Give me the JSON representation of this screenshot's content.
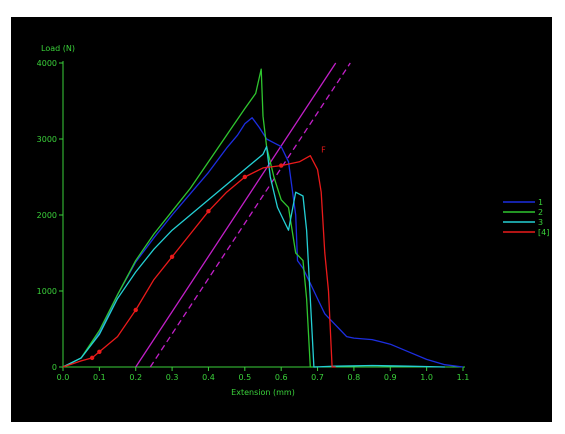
{
  "chart_data": {
    "type": "line",
    "xlabel": "Extension (mm)",
    "ylabel": "Load (N)",
    "xlim": [
      0,
      1.1
    ],
    "ylim": [
      0,
      4000
    ],
    "x_ticks": [
      "0.0",
      "0.1",
      "0.2",
      "0.3",
      "0.4",
      "0.5",
      "0.6",
      "0.7",
      "0.8",
      "0.9",
      "1.0",
      "1.1"
    ],
    "y_ticks": [
      "0",
      "1000",
      "2000",
      "3000",
      "4000"
    ],
    "legend_position": "right",
    "series": [
      {
        "name": "1",
        "color": "#1c2ee0",
        "points": [
          [
            0,
            0
          ],
          [
            0.05,
            120
          ],
          [
            0.1,
            450
          ],
          [
            0.15,
            950
          ],
          [
            0.2,
            1380
          ],
          [
            0.25,
            1700
          ],
          [
            0.3,
            2000
          ],
          [
            0.35,
            2280
          ],
          [
            0.4,
            2560
          ],
          [
            0.45,
            2880
          ],
          [
            0.48,
            3050
          ],
          [
            0.5,
            3200
          ],
          [
            0.52,
            3280
          ],
          [
            0.54,
            3150
          ],
          [
            0.56,
            3000
          ],
          [
            0.58,
            2950
          ],
          [
            0.6,
            2900
          ],
          [
            0.62,
            2700
          ],
          [
            0.64,
            2000
          ],
          [
            0.645,
            1400
          ],
          [
            0.66,
            1300
          ],
          [
            0.68,
            1100
          ],
          [
            0.7,
            900
          ],
          [
            0.72,
            700
          ],
          [
            0.74,
            600
          ],
          [
            0.76,
            500
          ],
          [
            0.78,
            400
          ],
          [
            0.8,
            380
          ],
          [
            0.85,
            360
          ],
          [
            0.9,
            300
          ],
          [
            0.95,
            200
          ],
          [
            1.0,
            100
          ],
          [
            1.05,
            30
          ],
          [
            1.1,
            0
          ]
        ]
      },
      {
        "name": "2",
        "color": "#2fc52f",
        "points": [
          [
            0,
            0
          ],
          [
            0.05,
            120
          ],
          [
            0.1,
            480
          ],
          [
            0.15,
            950
          ],
          [
            0.2,
            1400
          ],
          [
            0.25,
            1750
          ],
          [
            0.3,
            2050
          ],
          [
            0.35,
            2350
          ],
          [
            0.4,
            2700
          ],
          [
            0.45,
            3050
          ],
          [
            0.5,
            3400
          ],
          [
            0.53,
            3600
          ],
          [
            0.545,
            3920
          ],
          [
            0.55,
            3300
          ],
          [
            0.56,
            2900
          ],
          [
            0.58,
            2500
          ],
          [
            0.6,
            2200
          ],
          [
            0.62,
            2100
          ],
          [
            0.64,
            1500
          ],
          [
            0.66,
            1400
          ],
          [
            0.67,
            900
          ],
          [
            0.68,
            0
          ],
          [
            0.7,
            0
          ]
        ]
      },
      {
        "name": "3",
        "color": "#24cfd4",
        "points": [
          [
            0,
            0
          ],
          [
            0.05,
            120
          ],
          [
            0.1,
            430
          ],
          [
            0.15,
            900
          ],
          [
            0.2,
            1250
          ],
          [
            0.25,
            1550
          ],
          [
            0.3,
            1800
          ],
          [
            0.35,
            2000
          ],
          [
            0.4,
            2200
          ],
          [
            0.45,
            2400
          ],
          [
            0.5,
            2600
          ],
          [
            0.55,
            2800
          ],
          [
            0.56,
            2900
          ],
          [
            0.57,
            2500
          ],
          [
            0.59,
            2100
          ],
          [
            0.61,
            1900
          ],
          [
            0.62,
            1800
          ],
          [
            0.64,
            2300
          ],
          [
            0.66,
            2250
          ],
          [
            0.67,
            1800
          ],
          [
            0.68,
            900
          ],
          [
            0.69,
            0
          ],
          [
            0.75,
            10
          ],
          [
            0.85,
            20
          ],
          [
            0.95,
            10
          ],
          [
            1.05,
            0
          ]
        ]
      },
      {
        "name": "[4]",
        "color": "#ea1a1a",
        "points": [
          [
            0,
            0
          ],
          [
            0.05,
            80
          ],
          [
            0.08,
            120
          ],
          [
            0.1,
            200
          ],
          [
            0.15,
            400
          ],
          [
            0.2,
            750
          ],
          [
            0.25,
            1150
          ],
          [
            0.3,
            1450
          ],
          [
            0.35,
            1750
          ],
          [
            0.4,
            2050
          ],
          [
            0.45,
            2300
          ],
          [
            0.5,
            2500
          ],
          [
            0.55,
            2620
          ],
          [
            0.6,
            2650
          ],
          [
            0.65,
            2700
          ],
          [
            0.68,
            2780
          ],
          [
            0.7,
            2600
          ],
          [
            0.71,
            2300
          ],
          [
            0.72,
            1500
          ],
          [
            0.73,
            1000
          ],
          [
            0.74,
            0
          ],
          [
            0.75,
            0
          ]
        ]
      }
    ],
    "reference_lines": [
      {
        "color": "#c21fc8",
        "style": "solid",
        "x1": 0.2,
        "y1": 0,
        "x2": 0.75,
        "y2": 4000
      },
      {
        "color": "#c21fc8",
        "style": "dashed",
        "x1": 0.24,
        "y1": 0,
        "x2": 0.79,
        "y2": 4000
      }
    ],
    "annotations": [
      {
        "text": "F",
        "x": 0.71,
        "y": 2820
      }
    ]
  }
}
